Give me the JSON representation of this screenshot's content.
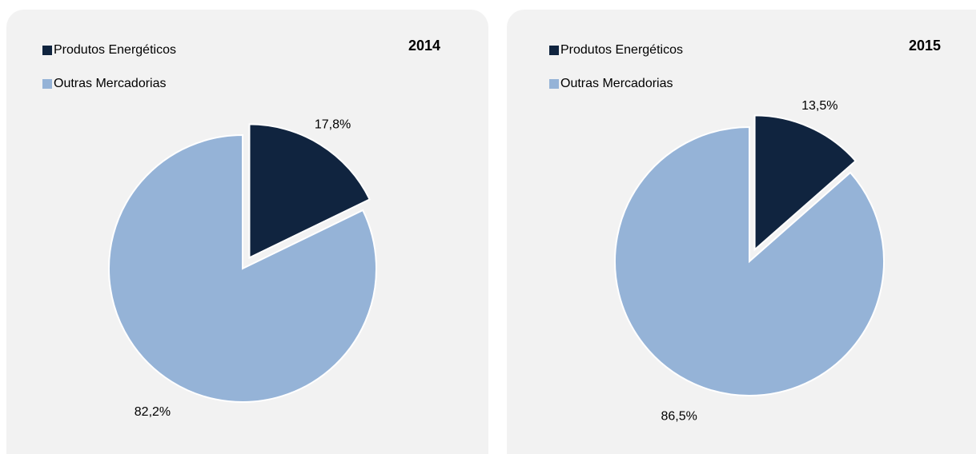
{
  "chart_data": [
    {
      "type": "pie",
      "title": "2014",
      "categories": [
        "Produtos Energéticos",
        "Outras Mercadorias"
      ],
      "values": [
        17.8,
        82.2
      ],
      "value_labels": [
        "17,8%",
        "82,2%"
      ],
      "colors": [
        "#10243f",
        "#95b3d7"
      ]
    },
    {
      "type": "pie",
      "title": "2015",
      "categories": [
        "Produtos Energéticos",
        "Outras Mercadorias"
      ],
      "values": [
        13.5,
        86.5
      ],
      "value_labels": [
        "13,5%",
        "86,5%"
      ],
      "colors": [
        "#10243f",
        "#95b3d7"
      ]
    }
  ]
}
